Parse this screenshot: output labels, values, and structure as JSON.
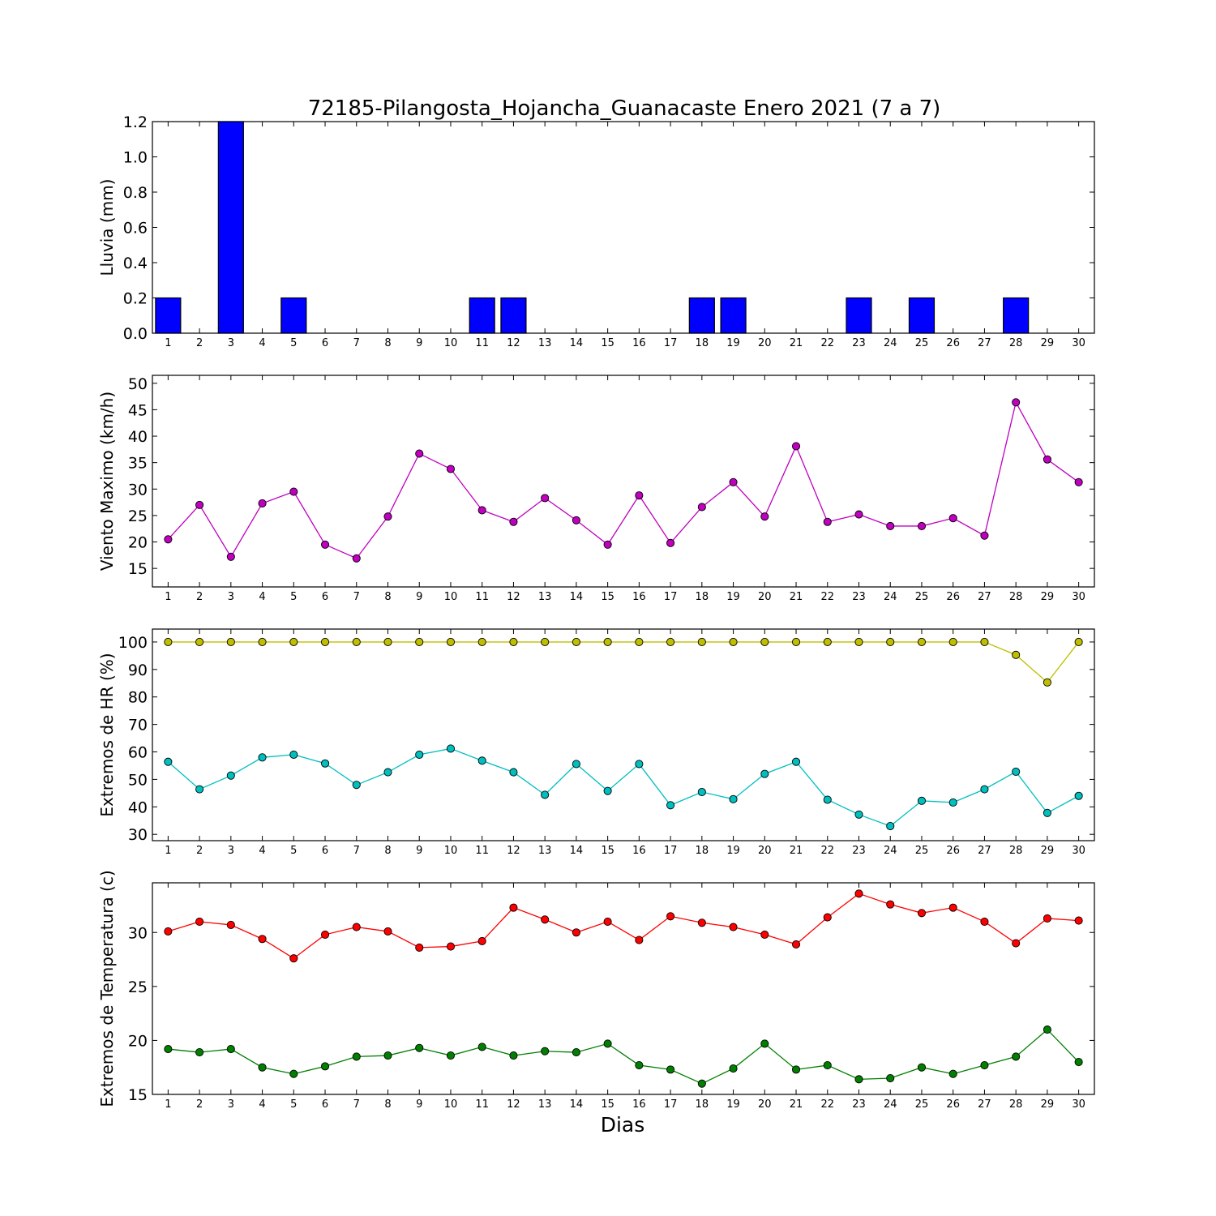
{
  "chart_data": {
    "title": "72185-Pilangosta_Hojancha_Guanacaste Enero 2021  (7 a 7)",
    "xlabel": "Dias",
    "x": [
      1,
      2,
      3,
      4,
      5,
      6,
      7,
      8,
      9,
      10,
      11,
      12,
      13,
      14,
      15,
      16,
      17,
      18,
      19,
      20,
      21,
      22,
      23,
      24,
      25,
      26,
      27,
      28,
      29,
      30
    ],
    "panels": [
      {
        "type": "bar",
        "ylabel": "Lluvia (mm)",
        "ylim": [
          0,
          1.2
        ],
        "yticks": [
          "0.0",
          "0.2",
          "0.4",
          "0.6",
          "0.8",
          "1.0",
          "1.2"
        ],
        "series": [
          {
            "color": "#0000ff",
            "values": [
              0.2,
              0,
              1.2,
              0,
              0.2,
              0,
              0,
              0,
              0,
              0,
              0.2,
              0.2,
              0,
              0,
              0,
              0,
              0,
              0.2,
              0.2,
              0,
              0,
              0,
              0.2,
              0,
              0.2,
              0,
              0,
              0.2,
              0,
              0
            ]
          }
        ]
      },
      {
        "type": "line",
        "ylabel": "Viento Maximo (km/h)",
        "ylim": [
          11.5,
          51.5
        ],
        "yticks": [
          "15",
          "20",
          "25",
          "30",
          "35",
          "40",
          "45",
          "50"
        ],
        "series": [
          {
            "color": "#bf00bf",
            "values": [
              20.5,
              27,
              17.2,
              27.3,
              29.5,
              19.5,
              16.9,
              24.8,
              36.7,
              33.8,
              26,
              23.8,
              28.3,
              24.1,
              19.5,
              28.8,
              19.8,
              26.6,
              31.3,
              24.8,
              38.1,
              23.8,
              25.2,
              23,
              23,
              24.5,
              21.2,
              46.4,
              35.6,
              31.3
            ]
          }
        ]
      },
      {
        "type": "line",
        "ylabel": "Extremos de HR (%)",
        "ylim": [
          27.7,
          104.7
        ],
        "yticks": [
          "30",
          "40",
          "50",
          "60",
          "70",
          "80",
          "90",
          "100"
        ],
        "series": [
          {
            "color": "#bfbf00",
            "values": [
              100,
              100,
              100,
              100,
              100,
              100,
              100,
              100,
              100,
              100,
              100,
              100,
              100,
              100,
              100,
              100,
              100,
              100,
              100,
              100,
              100,
              100,
              100,
              100,
              100,
              100,
              100,
              95.3,
              85.3,
              100
            ]
          },
          {
            "color": "#00bfbf",
            "values": [
              56.4,
              46.4,
              51.4,
              58,
              59,
              55.8,
              48,
              52.6,
              59,
              61.2,
              56.8,
              52.6,
              44.4,
              55.6,
              45.8,
              55.6,
              40.6,
              45.4,
              42.8,
              52,
              56.4,
              42.6,
              37.2,
              33,
              42.2,
              41.6,
              46.4,
              52.8,
              37.8,
              44
            ]
          }
        ]
      },
      {
        "type": "line",
        "ylabel": "Extremos de Temperatura (c)",
        "ylim": [
          15,
          34.6
        ],
        "yticks": [
          "15",
          "20",
          "25",
          "30"
        ],
        "series": [
          {
            "color": "#ff0000",
            "values": [
              30.1,
              31,
              30.7,
              29.4,
              27.6,
              29.8,
              30.5,
              30.1,
              28.6,
              28.7,
              29.2,
              32.3,
              31.2,
              30,
              31,
              29.3,
              31.5,
              30.9,
              30.5,
              29.8,
              28.9,
              31.4,
              33.6,
              32.6,
              31.8,
              32.3,
              31,
              29,
              31.3,
              31.1
            ]
          },
          {
            "color": "#007f00",
            "values": [
              19.2,
              18.9,
              19.2,
              17.5,
              16.9,
              17.6,
              18.5,
              18.6,
              19.3,
              18.6,
              19.4,
              18.6,
              19,
              18.9,
              19.7,
              17.7,
              17.3,
              16,
              17.4,
              19.7,
              17.3,
              17.7,
              16.4,
              16.5,
              17.5,
              16.9,
              17.7,
              18.5,
              21,
              18
            ]
          }
        ]
      }
    ]
  }
}
